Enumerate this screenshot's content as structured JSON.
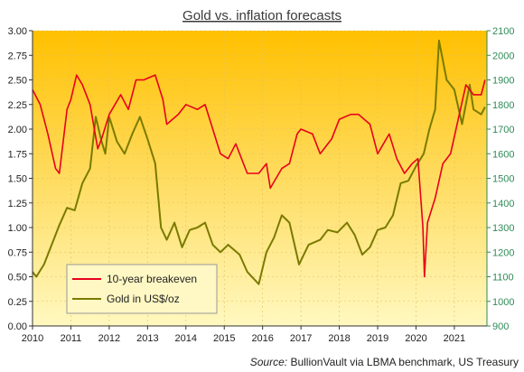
{
  "chart_data": {
    "type": "line",
    "title": "Gold vs. inflation forecasts",
    "source_label": "Source:",
    "source_text": " BullionVault via LBMA benchmark, US Treasury",
    "x_ticks": [
      "2010",
      "2011",
      "2012",
      "2013",
      "2014",
      "2015",
      "2016",
      "2017",
      "2018",
      "2019",
      "2020",
      "2021"
    ],
    "y_left": {
      "ylim": [
        0,
        3
      ],
      "ticks": [
        "0.00",
        "0.25",
        "0.50",
        "0.75",
        "1.00",
        "1.25",
        "1.50",
        "1.75",
        "2.00",
        "2.25",
        "2.50",
        "2.75",
        "3.00"
      ]
    },
    "y_right": {
      "ylim": [
        900,
        2100
      ],
      "ticks": [
        "900",
        "1000",
        "1100",
        "1200",
        "1300",
        "1400",
        "1500",
        "1600",
        "1700",
        "1800",
        "1900",
        "2000",
        "2100"
      ]
    },
    "legend": "bottom-left",
    "colors": {
      "breakeven": "#e8001c",
      "gold": "#7a7a00",
      "right_axis": "#2e8b57",
      "bg_top": "#ffc000",
      "bg_bottom": "#fff8c0"
    },
    "series": [
      {
        "name": "10-year breakeven",
        "axis": "left",
        "x": [
          2010.0,
          2010.2,
          2010.4,
          2010.6,
          2010.7,
          2010.9,
          2011.0,
          2011.15,
          2011.3,
          2011.5,
          2011.7,
          2011.8,
          2012.0,
          2012.3,
          2012.5,
          2012.7,
          2012.9,
          2013.2,
          2013.4,
          2013.5,
          2013.8,
          2014.0,
          2014.3,
          2014.5,
          2014.7,
          2014.9,
          2015.1,
          2015.3,
          2015.6,
          2015.9,
          2016.1,
          2016.2,
          2016.5,
          2016.7,
          2016.9,
          2017.0,
          2017.3,
          2017.5,
          2017.8,
          2018.0,
          2018.3,
          2018.5,
          2018.8,
          2019.0,
          2019.3,
          2019.5,
          2019.7,
          2019.9,
          2020.05,
          2020.18,
          2020.22,
          2020.3,
          2020.5,
          2020.7,
          2020.9,
          2021.1,
          2021.3,
          2021.5,
          2021.7,
          2021.8
        ],
        "y": [
          2.4,
          2.25,
          1.95,
          1.6,
          1.55,
          2.2,
          2.3,
          2.55,
          2.45,
          2.25,
          1.8,
          1.9,
          2.15,
          2.35,
          2.2,
          2.5,
          2.5,
          2.55,
          2.3,
          2.05,
          2.15,
          2.25,
          2.2,
          2.25,
          2.0,
          1.75,
          1.7,
          1.85,
          1.55,
          1.55,
          1.65,
          1.4,
          1.6,
          1.65,
          1.95,
          2.0,
          1.95,
          1.75,
          1.9,
          2.1,
          2.15,
          2.15,
          2.05,
          1.75,
          1.95,
          1.7,
          1.55,
          1.65,
          1.7,
          1.0,
          0.5,
          1.05,
          1.3,
          1.65,
          1.75,
          2.1,
          2.45,
          2.35,
          2.35,
          2.5
        ]
      },
      {
        "name": "Gold in US$/oz",
        "axis": "right",
        "x": [
          2010.0,
          2010.1,
          2010.3,
          2010.5,
          2010.7,
          2010.9,
          2011.1,
          2011.3,
          2011.5,
          2011.65,
          2011.8,
          2011.9,
          2012.0,
          2012.2,
          2012.4,
          2012.6,
          2012.8,
          2013.0,
          2013.2,
          2013.35,
          2013.5,
          2013.7,
          2013.9,
          2014.1,
          2014.3,
          2014.5,
          2014.7,
          2014.9,
          2015.1,
          2015.4,
          2015.6,
          2015.9,
          2016.1,
          2016.3,
          2016.5,
          2016.7,
          2016.95,
          2017.2,
          2017.5,
          2017.7,
          2017.95,
          2018.2,
          2018.4,
          2018.6,
          2018.8,
          2019.0,
          2019.2,
          2019.4,
          2019.6,
          2019.8,
          2020.0,
          2020.2,
          2020.35,
          2020.5,
          2020.6,
          2020.8,
          2021.0,
          2021.2,
          2021.4,
          2021.5,
          2021.7,
          2021.8
        ],
        "y": [
          1120,
          1100,
          1150,
          1230,
          1310,
          1380,
          1370,
          1480,
          1540,
          1750,
          1650,
          1600,
          1750,
          1650,
          1600,
          1680,
          1750,
          1660,
          1560,
          1300,
          1250,
          1320,
          1220,
          1290,
          1300,
          1320,
          1230,
          1200,
          1230,
          1190,
          1120,
          1070,
          1200,
          1260,
          1350,
          1320,
          1150,
          1230,
          1250,
          1290,
          1280,
          1320,
          1270,
          1190,
          1220,
          1290,
          1300,
          1350,
          1480,
          1490,
          1550,
          1600,
          1700,
          1780,
          2060,
          1900,
          1860,
          1720,
          1880,
          1780,
          1760,
          1790
        ]
      }
    ]
  }
}
